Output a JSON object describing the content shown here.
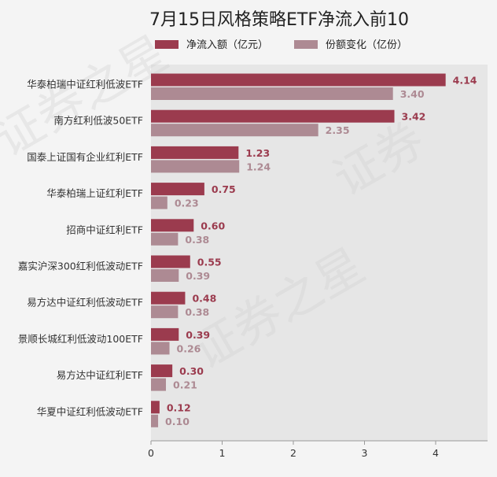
{
  "chart_data": {
    "type": "bar",
    "orientation": "horizontal",
    "title": "7月15日风格策略ETF净流入前10",
    "categories": [
      "华泰柏瑞中证红利低波ETF",
      "南方红利低波50ETF",
      "国泰上证国有企业红利ETF",
      "华泰柏瑞上证红利ETF",
      "招商中证红利ETF",
      "嘉实沪深300红利低波动ETF",
      "易方达中证红利低波动ETF",
      "景顺长城红利低波动100ETF",
      "易方达中证红利ETF",
      "华夏中证红利低波动ETF"
    ],
    "series": [
      {
        "name": "净流入额（亿元）",
        "color": "#9b3b4e",
        "values": [
          4.14,
          3.42,
          1.23,
          0.75,
          0.6,
          0.55,
          0.48,
          0.39,
          0.3,
          0.12
        ],
        "labels": [
          "4.14",
          "3.42",
          "1.23",
          "0.75",
          "0.60",
          "0.55",
          "0.48",
          "0.39",
          "0.30",
          "0.12"
        ]
      },
      {
        "name": "份额变化（亿份）",
        "color": "#ad8a93",
        "values": [
          3.4,
          2.35,
          1.24,
          0.23,
          0.38,
          0.39,
          0.38,
          0.26,
          0.21,
          0.1
        ],
        "labels": [
          "3.40",
          "2.35",
          "1.24",
          "0.23",
          "0.38",
          "0.39",
          "0.38",
          "0.26",
          "0.21",
          "0.10"
        ]
      }
    ],
    "x_ticks": [
      "0",
      "1",
      "2",
      "3",
      "4"
    ],
    "xlim": [
      0,
      4.75
    ],
    "grid": false,
    "legend_position": "top-center",
    "plot_background": "#e8e8e8"
  }
}
